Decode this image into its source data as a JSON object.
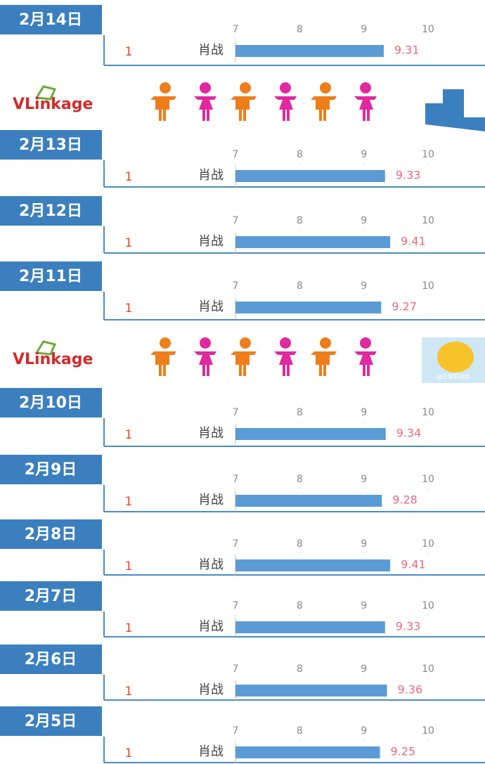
{
  "chart_data": [
    {
      "type": "bar",
      "title": "2月14日",
      "ranks": [
        1
      ],
      "categories": [
        "肖战"
      ],
      "values": [
        9.31
      ],
      "color": "#5b9bd5",
      "xlim": [
        7,
        10
      ],
      "xticks": [
        7,
        8,
        9,
        10
      ]
    },
    {
      "type": "bar",
      "title": "2月13日",
      "ranks": [
        1
      ],
      "categories": [
        "肖战"
      ],
      "values": [
        9.33
      ],
      "color": "#5b9bd5",
      "xlim": [
        7,
        10
      ],
      "xticks": [
        7,
        8,
        9,
        10
      ]
    },
    {
      "type": "bar",
      "title": "2月12日",
      "ranks": [
        1
      ],
      "categories": [
        "肖战"
      ],
      "values": [
        9.41
      ],
      "color": "#5b9bd5",
      "xlim": [
        7,
        10
      ],
      "xticks": [
        7,
        8,
        9,
        10
      ]
    },
    {
      "type": "bar",
      "title": "2月11日",
      "ranks": [
        1
      ],
      "categories": [
        "肖战"
      ],
      "values": [
        9.27
      ],
      "color": "#5b9bd5",
      "xlim": [
        7,
        10
      ],
      "xticks": [
        7,
        8,
        9,
        10
      ]
    },
    {
      "type": "bar",
      "title": "2月10日",
      "ranks": [
        1
      ],
      "categories": [
        "肖战"
      ],
      "values": [
        9.34
      ],
      "color": "#5b9bd5",
      "xlim": [
        7,
        10
      ],
      "xticks": [
        7,
        8,
        9,
        10
      ]
    },
    {
      "type": "bar",
      "title": "2月9日",
      "ranks": [
        1
      ],
      "categories": [
        "肖战"
      ],
      "values": [
        9.28
      ],
      "color": "#5b9bd5",
      "xlim": [
        7,
        10
      ],
      "xticks": [
        7,
        8,
        9,
        10
      ]
    },
    {
      "type": "bar",
      "title": "2月8日",
      "ranks": [
        1
      ],
      "categories": [
        "肖战"
      ],
      "values": [
        9.41
      ],
      "color": "#5b9bd5",
      "xlim": [
        7,
        10
      ],
      "xticks": [
        7,
        8,
        9,
        10
      ]
    },
    {
      "type": "bar",
      "title": "2月7日",
      "ranks": [
        1
      ],
      "categories": [
        "肖战"
      ],
      "values": [
        9.33
      ],
      "color": "#5b9bd5",
      "xlim": [
        7,
        10
      ],
      "xticks": [
        7,
        8,
        9,
        10
      ]
    },
    {
      "type": "bar",
      "title": "2月6日",
      "ranks": [
        1
      ],
      "categories": [
        "肖战"
      ],
      "values": [
        9.36
      ],
      "color": "#5b9bd5",
      "xlim": [
        7,
        10
      ],
      "xticks": [
        7,
        8,
        9,
        10
      ]
    },
    {
      "type": "bar",
      "title": "2月5日",
      "ranks": [
        1
      ],
      "categories": [
        "肖战"
      ],
      "values": [
        9.25
      ],
      "color": "#5b9bd5",
      "xlim": [
        7,
        10
      ],
      "xticks": [
        7,
        8,
        9,
        10
      ]
    }
  ],
  "banners": [
    {
      "logo": "VLinkage"
    },
    {
      "logo": "VLinkage",
      "watermark": "@芒果影视台"
    }
  ]
}
